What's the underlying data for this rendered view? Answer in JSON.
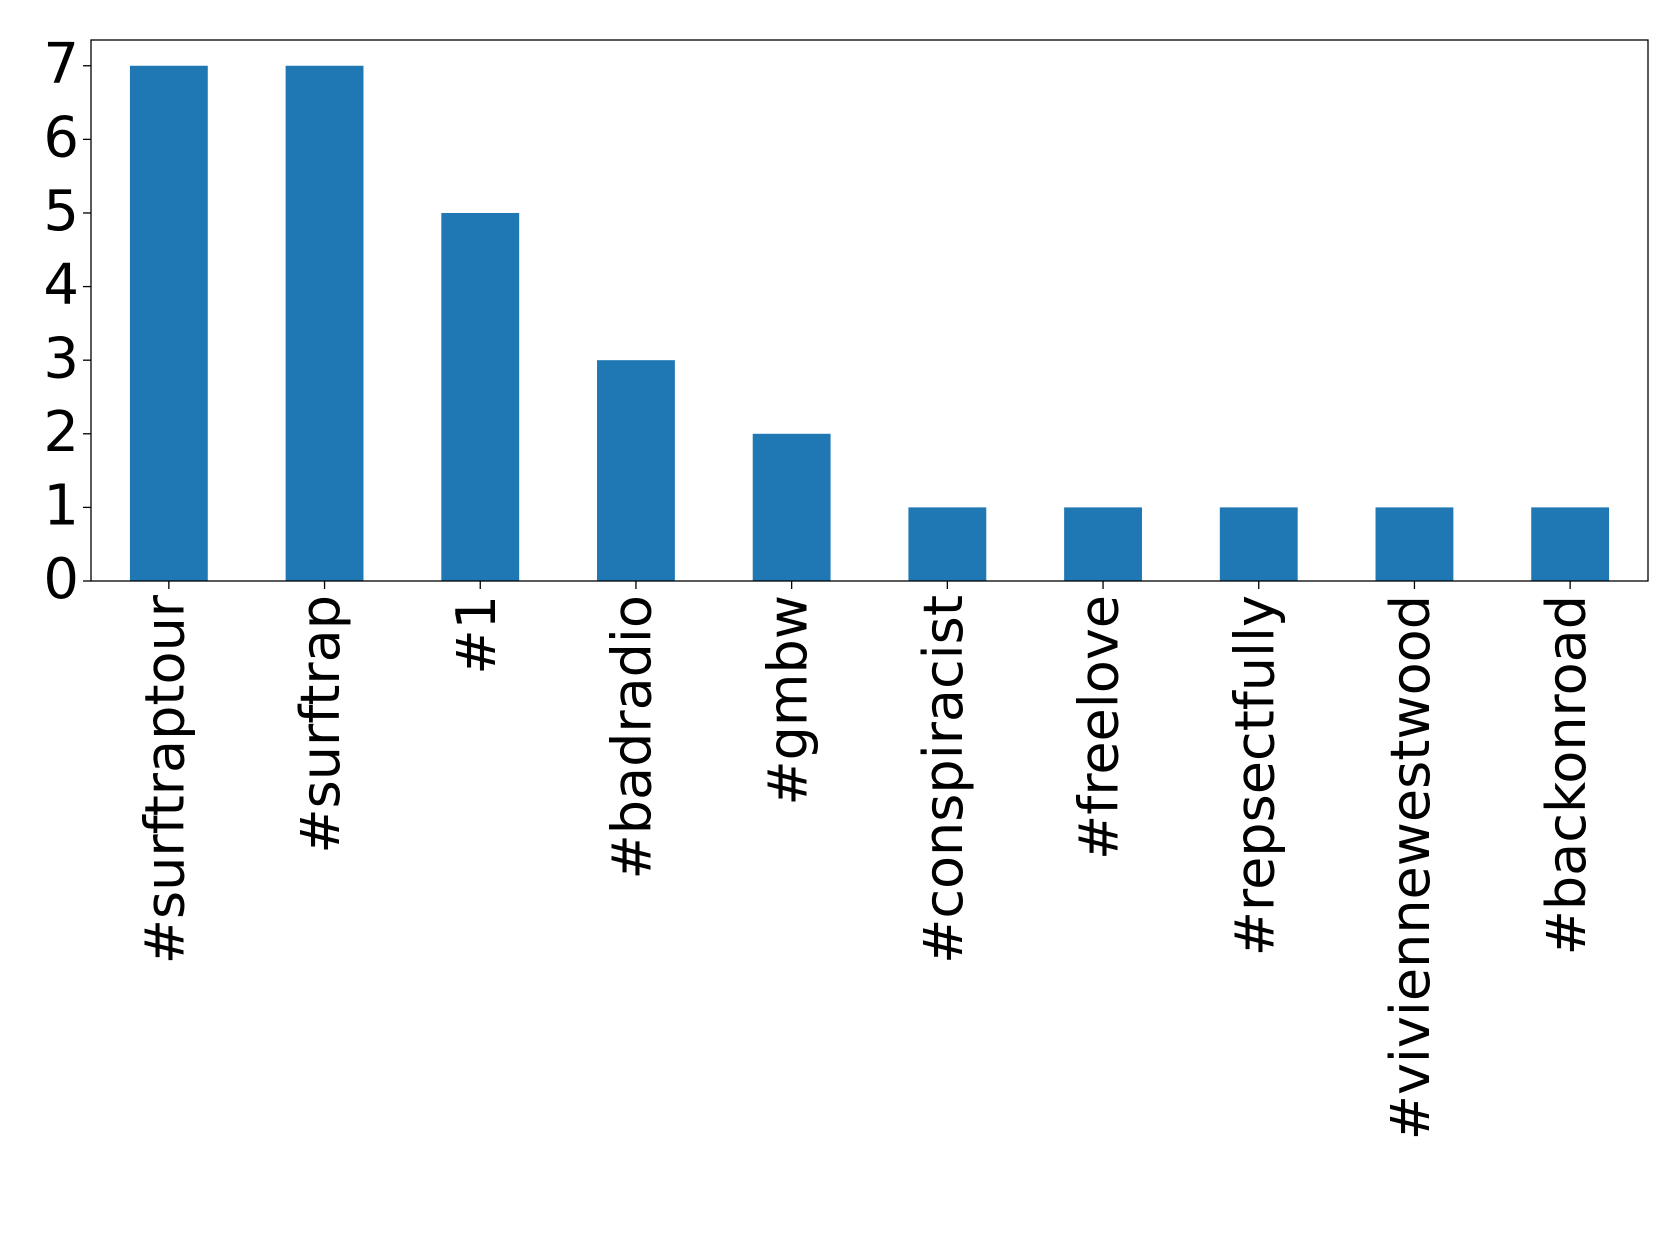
{
  "chart_data": {
    "type": "bar",
    "categories": [
      "#surftraptour",
      "#surftrap",
      "#1",
      "#badradio",
      "#gmbw",
      "#conspiracist",
      "#freelove",
      "#repsectfully",
      "#viviennewestwood",
      "#backonroad"
    ],
    "values": [
      7,
      7,
      5,
      3,
      2,
      1,
      1,
      1,
      1,
      1
    ],
    "color": "#1f77b4",
    "ylim": [
      0,
      7.35
    ],
    "yticks": [
      0,
      1,
      2,
      3,
      4,
      5,
      6,
      7
    ],
    "grid": false
  }
}
